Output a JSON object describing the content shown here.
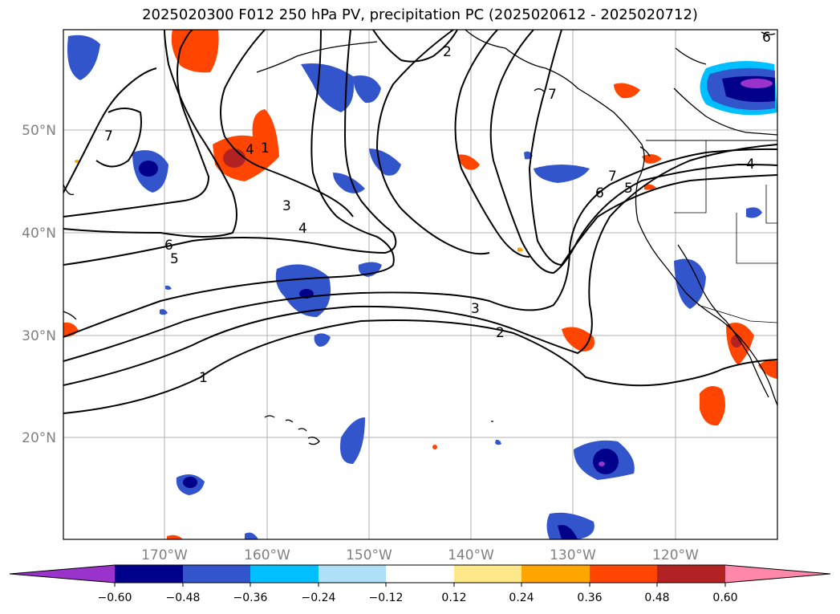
{
  "title": "2025020300 F012 250 hPa PV, precipitation PC (2025020612 - 2025020712)",
  "map": {
    "lat_labels": [
      "50°N",
      "40°N",
      "30°N",
      "20°N"
    ],
    "lon_labels": [
      "170°W",
      "160°W",
      "150°W",
      "140°W",
      "130°W",
      "120°W"
    ],
    "gridlines": true
  },
  "pv_contour_labels": [
    "1",
    "2",
    "3",
    "4",
    "5",
    "6",
    "7",
    "1",
    "2",
    "3",
    "4",
    "4",
    "5",
    "6",
    "7",
    "7",
    "6"
  ],
  "colorbar": {
    "ticks": [
      "−0.60",
      "−0.48",
      "−0.36",
      "−0.24",
      "−0.12",
      "0.12",
      "0.24",
      "0.36",
      "0.48",
      "0.60"
    ],
    "colors": {
      "neg_extend": "#9933cc",
      "neg_060": "#00008b",
      "neg_048": "#3355cc",
      "neg_036": "#00bfff",
      "neg_024": "#aee0f8",
      "neutral": "#ffffff",
      "pos_012": "#ffe88a",
      "pos_024": "#ffa500",
      "pos_036": "#ff4500",
      "pos_048": "#b22222",
      "pos_extend": "#ff88aa"
    }
  }
}
